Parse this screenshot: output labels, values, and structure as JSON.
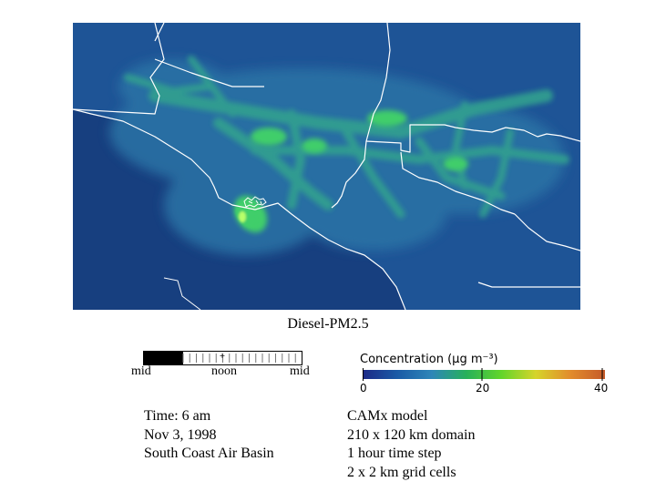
{
  "title": "Diesel-PM2.5",
  "clock": {
    "labels": [
      "mid",
      "noon",
      "mid"
    ],
    "elapsed_fraction": 0.25
  },
  "scale": {
    "title": "Concentration (µg m⁻³)",
    "ticks": [
      "0",
      "20",
      "40"
    ],
    "min": 0,
    "max": 40,
    "colors": [
      "#1d2a86",
      "#1a5aa6",
      "#2e86b8",
      "#27b15a",
      "#62d52a",
      "#d6d42a",
      "#e28c2c",
      "#c55a2a"
    ]
  },
  "left_info": [
    "Time: 6 am",
    "Nov 3, 1998",
    "South Coast Air Basin"
  ],
  "right_info": [
    "CAMx model",
    "210 x 120 km domain",
    "1 hour time step",
    "2 x 2 km grid cells"
  ],
  "map_colors": {
    "ocean": "#173f7f",
    "background": "#1e5496",
    "low": "#2b73a6",
    "mid": "#30a08f",
    "high": "#3fce6a",
    "peak": "#b8ff6a",
    "boundary": "#ffffff"
  }
}
